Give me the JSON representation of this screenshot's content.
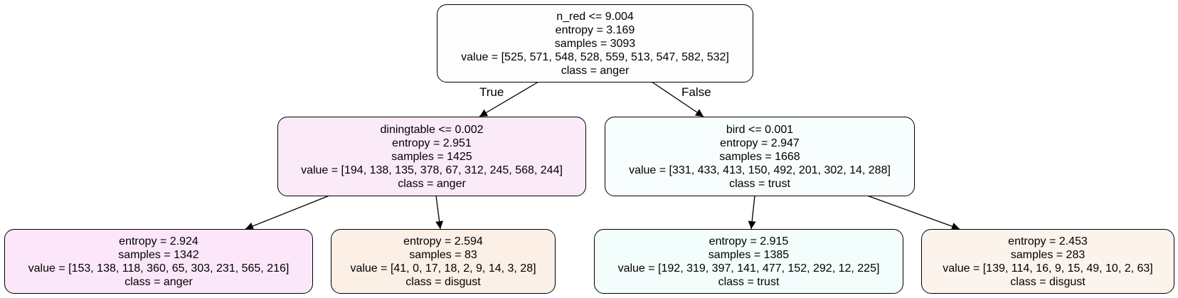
{
  "tree": {
    "root": {
      "split": "n_red <= 9.004",
      "entropy": "entropy = 3.169",
      "samples": "samples = 3093",
      "value": "value = [525, 571, 548, 528, 559, 513, 547, 582, 532]",
      "class": "class = anger",
      "fill": "#fefdfe"
    },
    "left": {
      "split": "diningtable <= 0.002",
      "entropy": "entropy = 2.951",
      "samples": "samples = 1425",
      "value": "value = [194, 138, 135, 378, 67, 312, 245, 568, 244]",
      "class": "class = anger",
      "fill": "#fbebf9"
    },
    "right": {
      "split": "bird <= 0.001",
      "entropy": "entropy = 2.947",
      "samples": "samples = 1668",
      "value": "value = [331, 433, 413, 150, 492, 201, 302, 14, 288]",
      "class": "class = trust",
      "fill": "#f8fdfd"
    },
    "left_left": {
      "entropy": "entropy = 2.924",
      "samples": "samples = 1342",
      "value": "value = [153, 138, 118, 360, 65, 303, 231, 565, 216]",
      "class": "class = anger",
      "fill": "#fbe7f9"
    },
    "left_right": {
      "entropy": "entropy = 2.594",
      "samples": "samples = 83",
      "value": "value = [41, 0, 17, 18, 2, 9, 14, 3, 28]",
      "class": "class = disgust",
      "fill": "#fcefe5"
    },
    "right_left": {
      "entropy": "entropy = 2.915",
      "samples": "samples = 1385",
      "value": "value = [192, 319, 397, 141, 477, 152, 292, 12, 225]",
      "class": "class = trust",
      "fill": "#f3fdfb"
    },
    "right_right": {
      "entropy": "entropy = 2.453",
      "samples": "samples = 283",
      "value": "value = [139, 114, 16, 9, 15, 49, 10, 2, 63]",
      "class": "class = disgust",
      "fill": "#fcf3ec"
    },
    "edge_true": "True",
    "edge_false": "False",
    "edge_color": "#000000"
  }
}
